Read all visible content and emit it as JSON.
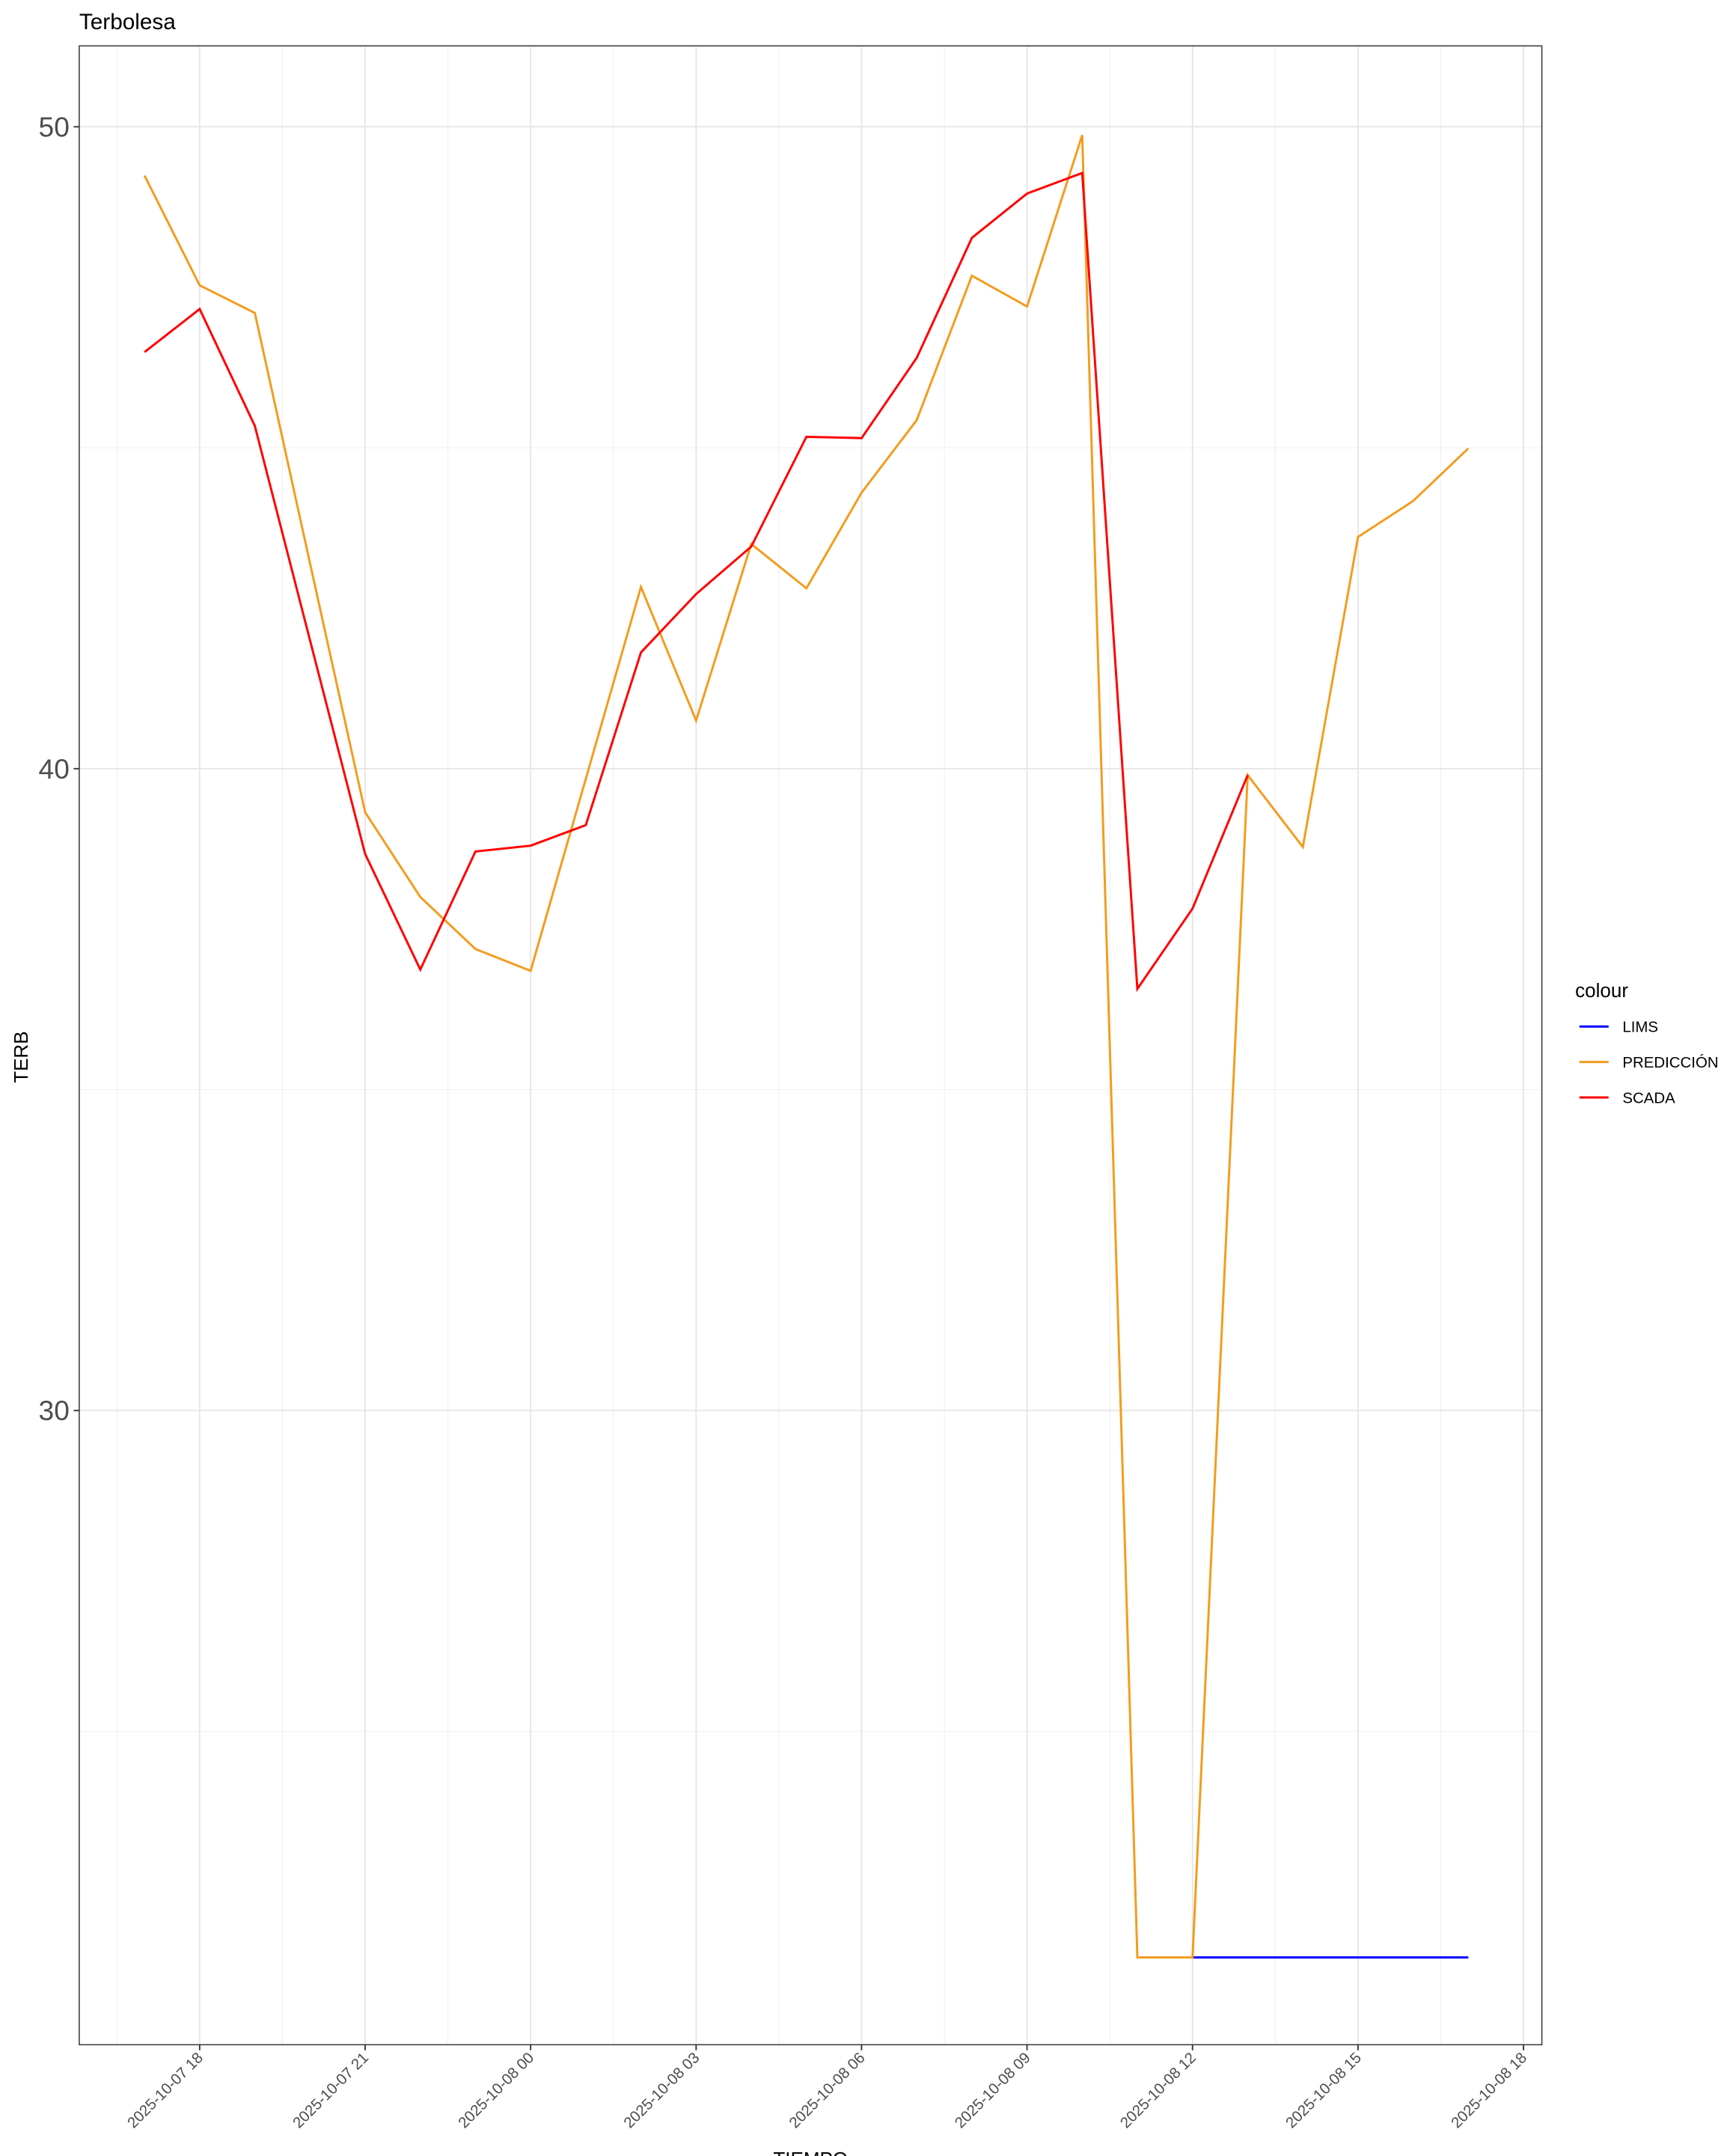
{
  "chart_data": {
    "type": "line",
    "title": "Terbolesa",
    "x_label": "TIEMPO",
    "y_label": "TERB",
    "legend_title": "colour",
    "legend_position": "right",
    "grid": true,
    "x": [
      "2025-10-07 17",
      "2025-10-07 18",
      "2025-10-07 19",
      "2025-10-07 20",
      "2025-10-07 21",
      "2025-10-07 22",
      "2025-10-07 23",
      "2025-10-08 00",
      "2025-10-08 01",
      "2025-10-08 02",
      "2025-10-08 03",
      "2025-10-08 04",
      "2025-10-08 05",
      "2025-10-08 06",
      "2025-10-08 07",
      "2025-10-08 08",
      "2025-10-08 09",
      "2025-10-08 10",
      "2025-10-08 11",
      "2025-10-08 12",
      "2025-10-08 13",
      "2025-10-08 14",
      "2025-10-08 15",
      "2025-10-08 16",
      "2025-10-08 17"
    ],
    "xlim": [
      "2025-10-07 15:49",
      "2025-10-08 18:20"
    ],
    "xticks": [
      "2025-10-07 18",
      "2025-10-07 21",
      "2025-10-08 00",
      "2025-10-08 03",
      "2025-10-08 06",
      "2025-10-08 09",
      "2025-10-08 12",
      "2025-10-08 15",
      "2025-10-08 18"
    ],
    "ylim": [
      20.12,
      51.26
    ],
    "yticks": [
      30,
      40,
      50
    ],
    "series": [
      {
        "name": "LIMS",
        "color": "#0000ff",
        "values": [
          null,
          null,
          null,
          null,
          null,
          null,
          null,
          null,
          null,
          null,
          null,
          null,
          null,
          null,
          null,
          null,
          null,
          null,
          null,
          21.48,
          21.48,
          21.48,
          21.48,
          21.48,
          21.48
        ]
      },
      {
        "name": "PREDICCIÓN",
        "color": "#f39c1f",
        "values": [
          49.24,
          47.53,
          47.1,
          43.2,
          39.32,
          38.0,
          37.19,
          36.85,
          39.84,
          42.83,
          40.75,
          43.5,
          42.81,
          44.3,
          45.43,
          47.68,
          47.2,
          49.87,
          21.48,
          21.48,
          39.9,
          38.78,
          43.61,
          44.17,
          44.99
        ]
      },
      {
        "name": "SCADA",
        "color": "#ff0000",
        "values": [
          46.49,
          47.16,
          45.34,
          42.0,
          38.67,
          36.87,
          38.71,
          38.8,
          39.12,
          41.81,
          42.72,
          43.46,
          45.17,
          45.15,
          46.4,
          48.27,
          48.96,
          49.28,
          36.57,
          37.82,
          39.9,
          null,
          null,
          null,
          null
        ]
      }
    ]
  }
}
